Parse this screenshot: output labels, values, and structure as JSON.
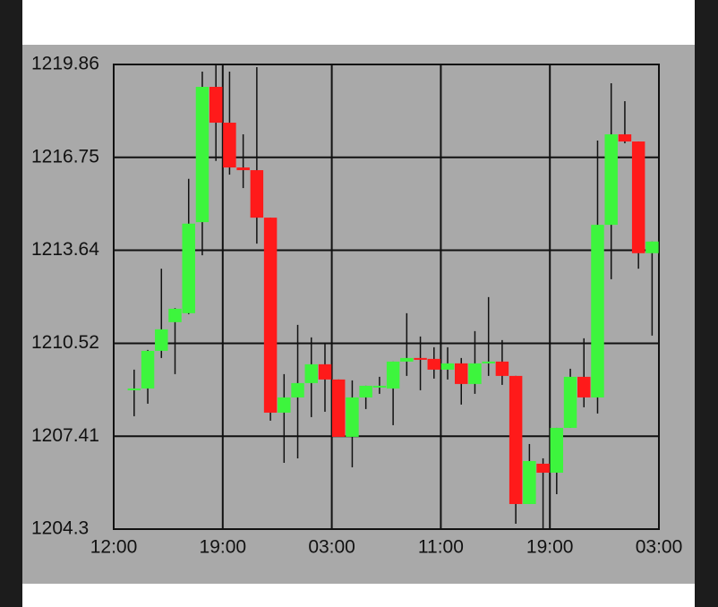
{
  "chart_data": {
    "type": "candlestick",
    "x": [
      1.5,
      2.5,
      3.5,
      4.5,
      5.5,
      6.5,
      7.5,
      8.5,
      9.5,
      10.5,
      11.5,
      12.5,
      13.5,
      14.5,
      15.5,
      16.5,
      17.5,
      18.5,
      19.5,
      20.5,
      21.5,
      22.5,
      23.5,
      24.5,
      25.5,
      26.5,
      27.5,
      28.5,
      29.5,
      30.5,
      31.5,
      32.5,
      33.5,
      34.5,
      35.5,
      36.5,
      37.5,
      38.5,
      39.5
    ],
    "open": [
      1208.95,
      1209.01,
      1210.27,
      1211.23,
      1211.53,
      1214.58,
      1219.11,
      1217.91,
      1216.41,
      1216.32,
      1214.73,
      1208.2,
      1208.71,
      1209.19,
      1209.82,
      1209.31,
      1207.39,
      1208.71,
      1209.07,
      1209.01,
      1209.91,
      1210.03,
      1210.0,
      1209.64,
      1209.85,
      1209.16,
      1209.85,
      1209.91,
      1209.43,
      1205.14,
      1206.49,
      1206.19,
      1207.69,
      1209.4,
      1208.71,
      1214.49,
      1217.52,
      1217.28,
      1213.54
    ],
    "high": [
      1209.64,
      1210.3,
      1213.02,
      1211.7,
      1216.03,
      1219.62,
      1219.86,
      1219.62,
      1217.52,
      1219.77,
      1214.73,
      1209.49,
      1211.14,
      1210.72,
      1210.54,
      1209.31,
      1209.28,
      1209.1,
      1209.4,
      1209.91,
      1211.53,
      1210.75,
      1210.39,
      1210.39,
      1210.03,
      1210.93,
      1212.07,
      1210.63,
      1209.43,
      1207.15,
      1206.67,
      1207.69,
      1209.67,
      1210.69,
      1217.31,
      1219.23,
      1218.63,
      1217.28,
      1213.93
    ],
    "low": [
      1208.08,
      1208.5,
      1210.03,
      1209.49,
      1211.5,
      1213.47,
      1216.63,
      1216.17,
      1215.72,
      1213.86,
      1207.93,
      1206.52,
      1206.67,
      1208.05,
      1208.23,
      1207.39,
      1206.37,
      1208.32,
      1208.83,
      1207.78,
      1209.43,
      1208.95,
      1209.34,
      1209.31,
      1208.47,
      1208.83,
      1209.43,
      1209.13,
      1204.48,
      1205.14,
      1204.33,
      1205.47,
      1207.69,
      1208.38,
      1208.17,
      1212.67,
      1217.22,
      1213.02,
      1210.78
    ],
    "close": [
      1209.01,
      1210.27,
      1210.99,
      1211.68,
      1214.53,
      1219.11,
      1217.91,
      1216.41,
      1216.32,
      1214.73,
      1208.2,
      1208.71,
      1209.19,
      1209.82,
      1209.31,
      1207.39,
      1208.71,
      1209.1,
      1209.1,
      1209.91,
      1210.03,
      1210.0,
      1209.64,
      1209.85,
      1209.16,
      1209.85,
      1209.91,
      1209.43,
      1205.14,
      1206.58,
      1206.19,
      1207.69,
      1209.4,
      1208.71,
      1214.49,
      1217.52,
      1217.28,
      1213.54,
      1213.93
    ],
    "up_color": "#3df53d",
    "down_color": "#ff1a1a",
    "xlim": [
      0,
      40
    ],
    "xticks": [
      {
        "value": 0,
        "label": "12:00"
      },
      {
        "value": 8,
        "label": "19:00"
      },
      {
        "value": 16,
        "label": "03:00"
      },
      {
        "value": 24,
        "label": "11:00"
      },
      {
        "value": 32,
        "label": "19:00"
      },
      {
        "value": 40,
        "label": "03:00"
      }
    ],
    "ylim": [
      1204.3,
      1219.86
    ],
    "yticks": [
      1204.3,
      1207.41,
      1210.52,
      1213.64,
      1216.75,
      1219.86
    ],
    "grid": true
  }
}
